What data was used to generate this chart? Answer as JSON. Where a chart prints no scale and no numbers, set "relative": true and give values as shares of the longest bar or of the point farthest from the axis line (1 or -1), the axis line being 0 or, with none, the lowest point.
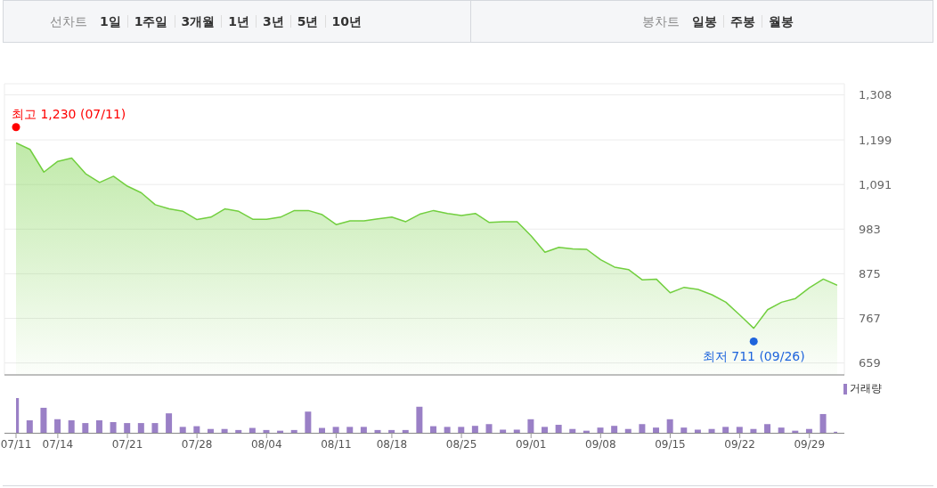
{
  "chart_data": [
    {
      "type": "other",
      "annotations": [
        "선차트",
        "1일",
        "1주일",
        "3개월",
        "1년",
        "3년",
        "5년",
        "10년"
      ]
    },
    {
      "type": "other",
      "annotations": [
        "봉차트",
        "일봉",
        "주봉",
        "월봉"
      ]
    },
    {
      "type": "area",
      "categories": [
        "07/11",
        null,
        null,
        "07/14",
        null,
        null,
        null,
        null,
        "07/21",
        null,
        null,
        null,
        null,
        "07/28",
        null,
        null,
        null,
        null,
        "08/04",
        null,
        null,
        null,
        null,
        "08/11",
        null,
        null,
        null,
        "08/18",
        null,
        null,
        null,
        null,
        "08/25",
        null,
        null,
        null,
        null,
        "09/01",
        null,
        null,
        null,
        null,
        "09/08",
        null,
        null,
        null,
        null,
        "09/15",
        null,
        null,
        null,
        null,
        "09/22",
        null,
        null,
        null,
        null,
        "09/29",
        null,
        null
      ],
      "series": [
        {
          "color": "#72cf3f",
          "values": [
            1192,
            1176,
            1121,
            1147,
            1155,
            1117,
            1096,
            1111,
            1087,
            1071,
            1042,
            1032,
            1026,
            1006,
            1012,
            1032,
            1026,
            1007,
            1007,
            1012,
            1028,
            1028,
            1018,
            994,
            1003,
            1003,
            1008,
            1012,
            1001,
            1019,
            1028,
            1021,
            1016,
            1021,
            999,
            1001,
            1001,
            967,
            927,
            939,
            935,
            934,
            909,
            891,
            885,
            860,
            862,
            829,
            842,
            837,
            824,
            806,
            775,
            743,
            788,
            806,
            815,
            841,
            862,
            847
          ]
        }
      ],
      "ylim": [
        630,
        1335
      ],
      "yticks": [
        659,
        767,
        875,
        983,
        {
          "value": 1091,
          "label": "1,091"
        },
        {
          "value": 1199,
          "label": "1,199"
        },
        {
          "value": 1308,
          "label": "1,308"
        }
      ],
      "grid": true,
      "tick_labels": "y",
      "annotations": [
        {
          "text": "최고 1,230 (07/11)",
          "x": "07/11",
          "y": 1230
        },
        {
          "text": "최저 711 (09/26)",
          "y": 711
        }
      ]
    },
    {
      "type": "bar",
      "categories": [
        "07/11",
        null,
        null,
        "07/14",
        null,
        null,
        null,
        null,
        "07/21",
        null,
        null,
        null,
        null,
        "07/28",
        null,
        null,
        null,
        null,
        "08/04",
        null,
        null,
        null,
        null,
        "08/11",
        null,
        null,
        null,
        "08/18",
        null,
        null,
        null,
        null,
        "08/25",
        null,
        null,
        null,
        null,
        "09/01",
        null,
        null,
        null,
        null,
        "09/08",
        null,
        null,
        null,
        null,
        "09/15",
        null,
        null,
        null,
        null,
        "09/22",
        null,
        null,
        null,
        null,
        "09/29",
        null,
        null
      ],
      "series": [
        {
          "name": "거래량",
          "color": "#9a80c6",
          "values": [
            1,
            0.36,
            0.72,
            0.39,
            0.36,
            0.28,
            0.36,
            0.31,
            0.28,
            0.28,
            0.28,
            0.56,
            0.17,
            0.19,
            0.11,
            0.11,
            0.08,
            0.14,
            0.08,
            0.06,
            0.08,
            0.61,
            0.14,
            0.17,
            0.17,
            0.17,
            0.08,
            0.08,
            0.08,
            0.75,
            0.19,
            0.17,
            0.17,
            0.2,
            0.25,
            0.09,
            0.09,
            0.39,
            0.17,
            0.23,
            0.11,
            0.06,
            0.15,
            0.2,
            0.11,
            0.25,
            0.15,
            0.39,
            0.15,
            0.09,
            0.11,
            0.17,
            0.17,
            0.11,
            0.25,
            0.15,
            0.06,
            0.11,
            0.54,
            0.03
          ]
        }
      ],
      "relative": true,
      "legend": "top right",
      "tick_labels": "x"
    }
  ]
}
